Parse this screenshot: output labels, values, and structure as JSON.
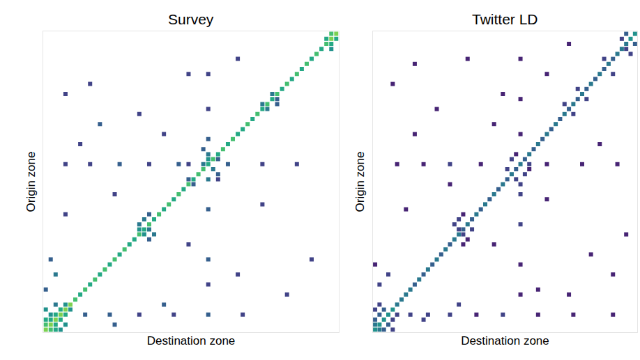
{
  "chart_data": [
    {
      "type": "heatmap",
      "title": "Survey",
      "x_label": "Destination zone",
      "y_label": "Origin zone",
      "xlim": [
        0.5,
        60.5
      ],
      "ylim": [
        0.5,
        60.5
      ],
      "xticks": [],
      "yticks": [],
      "tick_labels": false,
      "zlim": [
        0,
        10
      ],
      "color": "viridis",
      "cells": [
        [
          1,
          1,
          8
        ],
        [
          1,
          2,
          7
        ],
        [
          1,
          3,
          6
        ],
        [
          1,
          4,
          5
        ],
        [
          2,
          1,
          7
        ],
        [
          2,
          2,
          8
        ],
        [
          2,
          3,
          6
        ],
        [
          2,
          5,
          5
        ],
        [
          3,
          1,
          6
        ],
        [
          3,
          2,
          6
        ],
        [
          3,
          3,
          8
        ],
        [
          3,
          4,
          6
        ],
        [
          4,
          2,
          5
        ],
        [
          4,
          3,
          6
        ],
        [
          4,
          4,
          8
        ],
        [
          4,
          5,
          6
        ],
        [
          5,
          1,
          5
        ],
        [
          5,
          4,
          6
        ],
        [
          5,
          5,
          8
        ],
        [
          5,
          6,
          5
        ],
        [
          6,
          3,
          4
        ],
        [
          6,
          5,
          5
        ],
        [
          6,
          6,
          8
        ],
        [
          4,
          9,
          3
        ],
        [
          4,
          14,
          3
        ],
        [
          4,
          20,
          2
        ],
        [
          4,
          27,
          2
        ],
        [
          4,
          34,
          3
        ],
        [
          4,
          41,
          2
        ],
        [
          7,
          7,
          7
        ],
        [
          8,
          8,
          6
        ],
        [
          9,
          9,
          7
        ],
        [
          10,
          10,
          6
        ],
        [
          11,
          11,
          7
        ],
        [
          12,
          12,
          6
        ],
        [
          13,
          13,
          7
        ],
        [
          14,
          14,
          6
        ],
        [
          15,
          15,
          7
        ],
        [
          16,
          16,
          6
        ],
        [
          17,
          17,
          7
        ],
        [
          18,
          18,
          6
        ],
        [
          19,
          19,
          6
        ],
        [
          20,
          20,
          7
        ],
        [
          21,
          21,
          6
        ],
        [
          22,
          22,
          7
        ],
        [
          23,
          23,
          6
        ],
        [
          24,
          24,
          7
        ],
        [
          25,
          25,
          6
        ],
        [
          26,
          26,
          7
        ],
        [
          27,
          27,
          6
        ],
        [
          28,
          28,
          7
        ],
        [
          29,
          29,
          6
        ],
        [
          30,
          30,
          7
        ],
        [
          31,
          31,
          6
        ],
        [
          32,
          32,
          7
        ],
        [
          33,
          33,
          7
        ],
        [
          34,
          34,
          6
        ],
        [
          35,
          35,
          7
        ],
        [
          36,
          36,
          6
        ],
        [
          37,
          37,
          7
        ],
        [
          38,
          38,
          6
        ],
        [
          39,
          39,
          7
        ],
        [
          40,
          40,
          6
        ],
        [
          41,
          41,
          6
        ],
        [
          42,
          42,
          7
        ],
        [
          43,
          43,
          6
        ],
        [
          44,
          44,
          7
        ],
        [
          45,
          45,
          6
        ],
        [
          46,
          46,
          7
        ],
        [
          47,
          47,
          6
        ],
        [
          48,
          48,
          7
        ],
        [
          49,
          49,
          6
        ],
        [
          50,
          50,
          7
        ],
        [
          51,
          51,
          6
        ],
        [
          52,
          52,
          7
        ],
        [
          53,
          53,
          6
        ],
        [
          54,
          54,
          7
        ],
        [
          55,
          55,
          6
        ],
        [
          56,
          56,
          7
        ],
        [
          57,
          57,
          6
        ],
        [
          58,
          58,
          7
        ],
        [
          59,
          59,
          8
        ],
        [
          60,
          60,
          8
        ],
        [
          20,
          21,
          5
        ],
        [
          21,
          20,
          5
        ],
        [
          21,
          22,
          4
        ],
        [
          22,
          20,
          4
        ],
        [
          20,
          23,
          4
        ],
        [
          23,
          21,
          4
        ],
        [
          19,
          22,
          3
        ],
        [
          24,
          22,
          3
        ],
        [
          30,
          31,
          3
        ],
        [
          31,
          30,
          3
        ],
        [
          33,
          35,
          4
        ],
        [
          34,
          33,
          4
        ],
        [
          35,
          34,
          5
        ],
        [
          35,
          36,
          3
        ],
        [
          36,
          34,
          4
        ],
        [
          32,
          36,
          3
        ],
        [
          37,
          33,
          3
        ],
        [
          34,
          30,
          2
        ],
        [
          31,
          36,
          2
        ],
        [
          10,
          34,
          2
        ],
        [
          15,
          34,
          3
        ],
        [
          25,
          34,
          3
        ],
        [
          31,
          34,
          4
        ],
        [
          39,
          34,
          3
        ],
        [
          45,
          34,
          2
        ],
        [
          52,
          34,
          2
        ],
        [
          34,
          5,
          2
        ],
        [
          34,
          10,
          2
        ],
        [
          34,
          16,
          3
        ],
        [
          34,
          22,
          2
        ],
        [
          34,
          28,
          3
        ],
        [
          34,
          38,
          3
        ],
        [
          34,
          45,
          2
        ],
        [
          34,
          52,
          2
        ],
        [
          45,
          46,
          4
        ],
        [
          46,
          45,
          4
        ],
        [
          47,
          48,
          3
        ],
        [
          48,
          47,
          4
        ],
        [
          46,
          48,
          3
        ],
        [
          58,
          59,
          6
        ],
        [
          59,
          58,
          6
        ],
        [
          59,
          60,
          6
        ],
        [
          60,
          59,
          7
        ],
        [
          57,
          59,
          5
        ],
        [
          50,
          10,
          2
        ],
        [
          48,
          5,
          2
        ],
        [
          42,
          12,
          3
        ],
        [
          40,
          25,
          2
        ],
        [
          12,
          40,
          2
        ],
        [
          8,
          50,
          2
        ],
        [
          15,
          55,
          2
        ],
        [
          52,
          30,
          2
        ],
        [
          26,
          45,
          2
        ],
        [
          44,
          20,
          2
        ],
        [
          55,
          40,
          2
        ],
        [
          38,
          8,
          2
        ],
        [
          18,
          30,
          2
        ],
        [
          28,
          15,
          2
        ],
        [
          6,
          25,
          3
        ],
        [
          24,
          5,
          2
        ],
        [
          2,
          15,
          3
        ],
        [
          12,
          3,
          4
        ],
        [
          15,
          2,
          3
        ],
        [
          9,
          1,
          3
        ]
      ]
    },
    {
      "type": "heatmap",
      "title": "Twitter LD",
      "x_label": "Destination zone",
      "y_label": "Origin zone",
      "xlim": [
        0.5,
        60.5
      ],
      "ylim": [
        0.5,
        60.5
      ],
      "xticks": [],
      "yticks": [],
      "tick_labels": false,
      "zlim": [
        0,
        10
      ],
      "color": "viridis",
      "cells": [
        [
          1,
          1,
          5
        ],
        [
          1,
          2,
          4
        ],
        [
          1,
          3,
          3
        ],
        [
          1,
          5,
          2
        ],
        [
          2,
          1,
          4
        ],
        [
          2,
          2,
          5
        ],
        [
          2,
          4,
          3
        ],
        [
          3,
          1,
          3
        ],
        [
          3,
          3,
          5
        ],
        [
          3,
          5,
          2
        ],
        [
          4,
          2,
          3
        ],
        [
          4,
          4,
          5
        ],
        [
          4,
          6,
          2
        ],
        [
          5,
          1,
          2
        ],
        [
          5,
          3,
          3
        ],
        [
          5,
          5,
          5
        ],
        [
          6,
          2,
          2
        ],
        [
          6,
          6,
          4
        ],
        [
          4,
          9,
          2
        ],
        [
          4,
          13,
          2
        ],
        [
          4,
          18,
          2
        ],
        [
          4,
          24,
          1
        ],
        [
          4,
          30,
          2
        ],
        [
          4,
          38,
          1
        ],
        [
          4,
          46,
          1
        ],
        [
          4,
          55,
          1
        ],
        [
          7,
          7,
          4
        ],
        [
          8,
          8,
          4
        ],
        [
          9,
          9,
          4
        ],
        [
          10,
          10,
          3
        ],
        [
          11,
          11,
          4
        ],
        [
          12,
          12,
          3
        ],
        [
          13,
          13,
          4
        ],
        [
          14,
          14,
          3
        ],
        [
          15,
          15,
          4
        ],
        [
          16,
          16,
          3
        ],
        [
          17,
          17,
          4
        ],
        [
          18,
          18,
          3
        ],
        [
          19,
          19,
          4
        ],
        [
          20,
          20,
          4
        ],
        [
          21,
          21,
          3
        ],
        [
          22,
          22,
          4
        ],
        [
          23,
          23,
          3
        ],
        [
          24,
          24,
          4
        ],
        [
          25,
          25,
          3
        ],
        [
          26,
          26,
          4
        ],
        [
          27,
          27,
          3
        ],
        [
          28,
          28,
          4
        ],
        [
          29,
          29,
          3
        ],
        [
          30,
          30,
          4
        ],
        [
          31,
          31,
          3
        ],
        [
          32,
          32,
          4
        ],
        [
          33,
          33,
          3
        ],
        [
          34,
          34,
          4
        ],
        [
          35,
          35,
          3
        ],
        [
          36,
          36,
          4
        ],
        [
          37,
          37,
          3
        ],
        [
          38,
          38,
          4
        ],
        [
          39,
          39,
          3
        ],
        [
          40,
          40,
          4
        ],
        [
          41,
          41,
          3
        ],
        [
          42,
          42,
          4
        ],
        [
          43,
          43,
          3
        ],
        [
          44,
          44,
          4
        ],
        [
          45,
          45,
          3
        ],
        [
          46,
          46,
          4
        ],
        [
          47,
          47,
          3
        ],
        [
          48,
          48,
          4
        ],
        [
          49,
          49,
          3
        ],
        [
          50,
          50,
          4
        ],
        [
          51,
          51,
          3
        ],
        [
          52,
          52,
          4
        ],
        [
          53,
          53,
          3
        ],
        [
          54,
          54,
          4
        ],
        [
          55,
          55,
          3
        ],
        [
          56,
          56,
          4
        ],
        [
          57,
          57,
          4
        ],
        [
          58,
          58,
          4
        ],
        [
          59,
          59,
          5
        ],
        [
          60,
          60,
          5
        ],
        [
          20,
          21,
          2
        ],
        [
          21,
          20,
          2
        ],
        [
          21,
          23,
          2
        ],
        [
          22,
          19,
          2
        ],
        [
          19,
          22,
          1
        ],
        [
          23,
          20,
          2
        ],
        [
          18,
          21,
          1
        ],
        [
          24,
          21,
          1
        ],
        [
          31,
          33,
          2
        ],
        [
          33,
          31,
          2
        ],
        [
          32,
          35,
          2
        ],
        [
          35,
          32,
          2
        ],
        [
          36,
          33,
          1
        ],
        [
          33,
          36,
          1
        ],
        [
          30,
          34,
          2
        ],
        [
          34,
          36,
          2
        ],
        [
          8,
          34,
          1
        ],
        [
          14,
          34,
          1
        ],
        [
          22,
          34,
          2
        ],
        [
          28,
          34,
          2
        ],
        [
          40,
          34,
          1
        ],
        [
          47,
          34,
          1
        ],
        [
          55,
          34,
          1
        ],
        [
          34,
          6,
          1
        ],
        [
          34,
          12,
          1
        ],
        [
          34,
          18,
          2
        ],
        [
          34,
          25,
          1
        ],
        [
          34,
          40,
          1
        ],
        [
          34,
          48,
          1
        ],
        [
          34,
          56,
          1
        ],
        [
          44,
          46,
          2
        ],
        [
          46,
          44,
          2
        ],
        [
          47,
          49,
          2
        ],
        [
          49,
          47,
          2
        ],
        [
          52,
          55,
          2
        ],
        [
          55,
          53,
          2
        ],
        [
          58,
          60,
          3
        ],
        [
          60,
          58,
          3
        ],
        [
          59,
          57,
          2
        ],
        [
          57,
          58,
          2
        ],
        [
          56,
          59,
          2
        ],
        [
          10,
          2,
          2
        ],
        [
          12,
          4,
          2
        ],
        [
          14,
          1,
          1
        ],
        [
          3,
          12,
          2
        ],
        [
          8,
          45,
          1
        ],
        [
          16,
          50,
          1
        ],
        [
          20,
          58,
          1
        ],
        [
          25,
          8,
          1
        ],
        [
          27,
          40,
          1
        ],
        [
          40,
          10,
          1
        ],
        [
          42,
          28,
          1
        ],
        [
          45,
          15,
          1
        ],
        [
          50,
          5,
          1
        ],
        [
          52,
          40,
          1
        ],
        [
          55,
          22,
          1
        ],
        [
          58,
          45,
          1
        ],
        [
          38,
          52,
          1
        ],
        [
          30,
          18,
          1
        ],
        [
          18,
          28,
          1
        ],
        [
          12,
          55,
          1
        ],
        [
          6,
          20,
          2
        ],
        [
          48,
          30,
          1
        ],
        [
          54,
          10,
          1
        ],
        [
          9,
          38,
          1
        ]
      ]
    }
  ]
}
